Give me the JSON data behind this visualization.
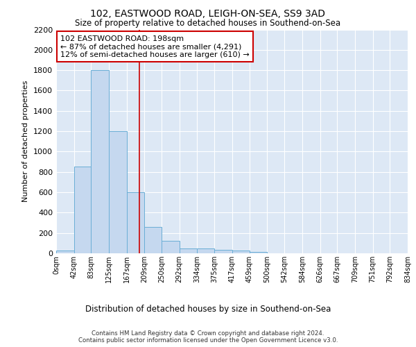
{
  "title1": "102, EASTWOOD ROAD, LEIGH-ON-SEA, SS9 3AD",
  "title2": "Size of property relative to detached houses in Southend-on-Sea",
  "xlabel": "Distribution of detached houses by size in Southend-on-Sea",
  "ylabel": "Number of detached properties",
  "footnote1": "Contains HM Land Registry data © Crown copyright and database right 2024.",
  "footnote2": "Contains public sector information licensed under the Open Government Licence v3.0.",
  "bar_edges": [
    0,
    42,
    83,
    125,
    167,
    209,
    250,
    292,
    334,
    375,
    417,
    459,
    500,
    542,
    584,
    626,
    667,
    709,
    751,
    792,
    834
  ],
  "bar_heights": [
    25,
    850,
    1800,
    1200,
    600,
    260,
    125,
    50,
    45,
    35,
    30,
    15,
    0,
    0,
    0,
    0,
    0,
    0,
    0,
    0
  ],
  "bar_color": "#c5d8ef",
  "bar_edge_color": "#6aaed6",
  "background_color": "#dde8f5",
  "grid_color": "#ffffff",
  "red_line_x": 198,
  "annotation_text": "102 EASTWOOD ROAD: 198sqm\n← 87% of detached houses are smaller (4,291)\n12% of semi-detached houses are larger (610) →",
  "annotation_box_color": "#ffffff",
  "annotation_box_edge": "#cc0000",
  "ylim": [
    0,
    2200
  ],
  "yticks": [
    0,
    200,
    400,
    600,
    800,
    1000,
    1200,
    1400,
    1600,
    1800,
    2000,
    2200
  ],
  "tick_labels": [
    "0sqm",
    "42sqm",
    "83sqm",
    "125sqm",
    "167sqm",
    "209sqm",
    "250sqm",
    "292sqm",
    "334sqm",
    "375sqm",
    "417sqm",
    "459sqm",
    "500sqm",
    "542sqm",
    "584sqm",
    "626sqm",
    "667sqm",
    "709sqm",
    "751sqm",
    "792sqm",
    "834sqm"
  ]
}
